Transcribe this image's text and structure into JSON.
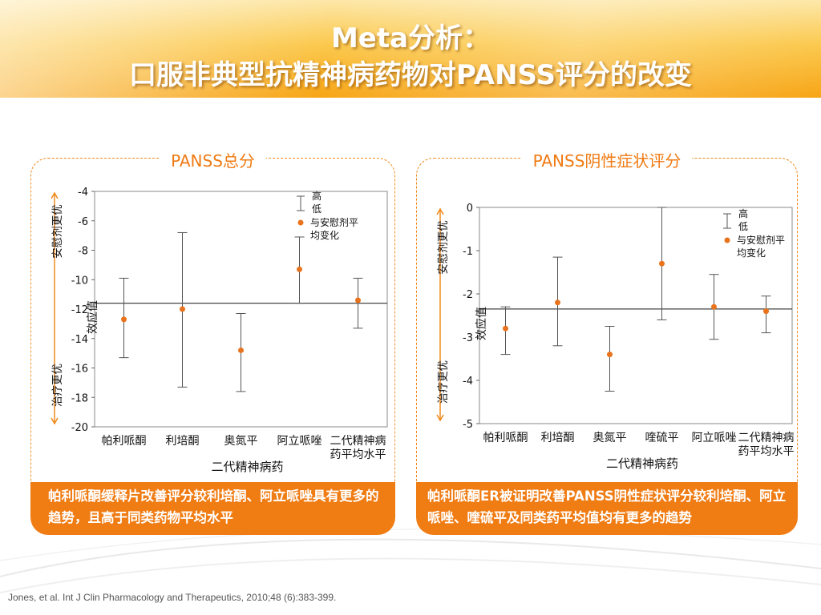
{
  "slide": {
    "title_line1": "Meta分析：",
    "title_line2": "口服非典型抗精神病药物对PANSS评分的改变",
    "footer": "Jones, et al. Int J Clin Pharmacology and Therapeutics,  2010;48 (6):383-399.",
    "colors": {
      "accent": "#f07c14",
      "marker": "#e8731c",
      "header": "#fbc94e"
    }
  },
  "chart_data": [
    {
      "type": "scatter",
      "title": "PANSS总分",
      "xlabel": "二代精神病药",
      "ylabel": "效应值",
      "ylabel_top": "安慰剂更优",
      "ylabel_bottom": "治疗更优",
      "ylim": [
        -20,
        -4
      ],
      "yticks": [
        -4,
        -6,
        -8,
        -10,
        -12,
        -14,
        -16,
        -18,
        -20
      ],
      "categories": [
        "帕利哌酮",
        "利培酮",
        "奥氮平",
        "阿立哌唑",
        "二代精神病药平均水平"
      ],
      "category_lines": [
        [
          "帕利哌酮"
        ],
        [
          "利培酮"
        ],
        [
          "奥氮平"
        ],
        [
          "阿立哌唑"
        ],
        [
          "二代精神病",
          "药平均水平"
        ]
      ],
      "values": [
        -12.7,
        -12.0,
        -14.8,
        -9.3,
        -11.4
      ],
      "high": [
        -9.9,
        -6.8,
        -12.3,
        -7.1,
        -9.9
      ],
      "low": [
        -15.3,
        -17.3,
        -17.6,
        -11.6,
        -13.3
      ],
      "reference_line": -11.6,
      "legend": {
        "high": "高",
        "low": "低",
        "point": "与安慰剂平均变化",
        "point_lines": [
          "与安慰剂平",
          "均变化"
        ]
      },
      "caption": "帕利哌酮缓释片改善评分较利培酮、阿立哌唑具有更多的趋势，且高于同类药物平均水平"
    },
    {
      "type": "scatter",
      "title": "PANSS阴性症状评分",
      "xlabel": "二代精神病药",
      "ylabel": "效应值",
      "ylabel_top": "安慰剂更优",
      "ylabel_bottom": "治疗更优",
      "ylim": [
        -5,
        0
      ],
      "yticks": [
        0,
        -1,
        -2,
        -3,
        -4,
        -5
      ],
      "categories": [
        "帕利哌酮",
        "利培酮",
        "奥氮平",
        "喹硫平",
        "阿立哌唑",
        "二代精神病药平均水平"
      ],
      "category_lines": [
        [
          "帕利哌酮"
        ],
        [
          "利培酮"
        ],
        [
          "奥氮平"
        ],
        [
          "喹硫平"
        ],
        [
          "阿立哌唑"
        ],
        [
          "二代精神病",
          "药平均水平"
        ]
      ],
      "values": [
        -2.8,
        -2.2,
        -3.4,
        -1.3,
        -2.3,
        -2.4
      ],
      "high": [
        -2.3,
        -1.15,
        -2.75,
        0.0,
        -1.55,
        -2.05
      ],
      "low": [
        -3.4,
        -3.2,
        -4.25,
        -2.6,
        -3.05,
        -2.9
      ],
      "reference_line": -2.35,
      "legend": {
        "high": "高",
        "low": "低",
        "point": "与安慰剂平均变化",
        "point_lines": [
          "与安慰剂平",
          "均变化"
        ]
      },
      "caption": "帕利哌酮ER被证明改善PANSS阴性症状评分较利培酮、阿立哌唑、喹硫平及同类药平均值均有更多的趋势"
    }
  ]
}
